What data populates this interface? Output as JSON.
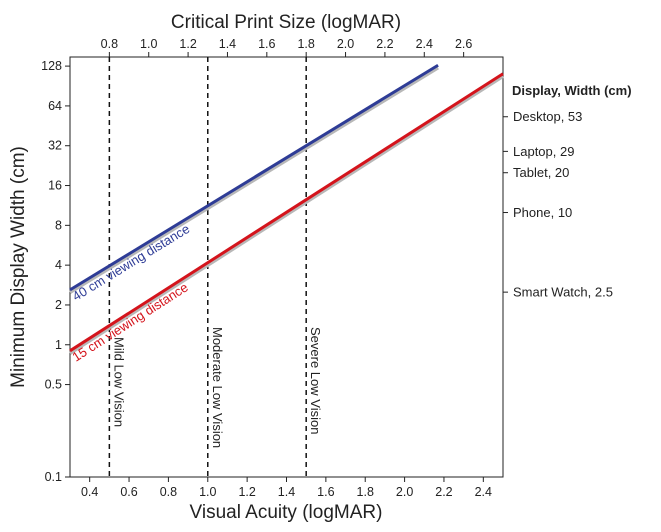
{
  "chart_data": {
    "type": "line",
    "title": "",
    "xlabel": "Visual Acuity (logMAR)",
    "x2label": "Critical Print Size (logMAR)",
    "ylabel": "Minimum Display Width (cm)",
    "xlim": [
      0.3,
      2.5
    ],
    "x2lim": [
      0.6,
      2.8
    ],
    "ylim": [
      0.1,
      150
    ],
    "yscale": "log",
    "grid": false,
    "x_ticks": [
      "0.4",
      "0.6",
      "0.8",
      "1.0",
      "1.2",
      "1.4",
      "1.6",
      "1.8",
      "2.0",
      "2.2",
      "2.4"
    ],
    "x2_ticks": [
      "0.8",
      "1.0",
      "1.2",
      "1.4",
      "1.6",
      "1.8",
      "2.0",
      "2.2",
      "2.4",
      "2.6"
    ],
    "y_ticks": [
      "0.1",
      "0.5",
      "1",
      "2",
      "4",
      "8",
      "16",
      "32",
      "64",
      "128"
    ],
    "series": [
      {
        "name": "40 cm viewing distance",
        "color": "#2e3c96",
        "x": [
          0.3,
          2.17
        ],
        "y": [
          2.6,
          130
        ]
      },
      {
        "name": "15 cm viewing distance",
        "color": "#d4141c",
        "x": [
          0.3,
          2.5
        ],
        "y": [
          0.9,
          112
        ]
      }
    ],
    "vision_levels": [
      {
        "label": "Mild Low Vision",
        "x": 0.5
      },
      {
        "label": "Moderate Low Vision",
        "x": 1.0
      },
      {
        "label": "Severe Low Vision",
        "x": 1.5
      }
    ],
    "display_widths_title": "Display, Width (cm)",
    "display_widths": [
      {
        "label": "Desktop, 53",
        "value": 53
      },
      {
        "label": "Laptop, 29",
        "value": 29
      },
      {
        "label": "Tablet, 20",
        "value": 20
      },
      {
        "label": "Phone, 10",
        "value": 10
      },
      {
        "label": "Smart Watch, 2.5",
        "value": 2.5
      }
    ]
  }
}
